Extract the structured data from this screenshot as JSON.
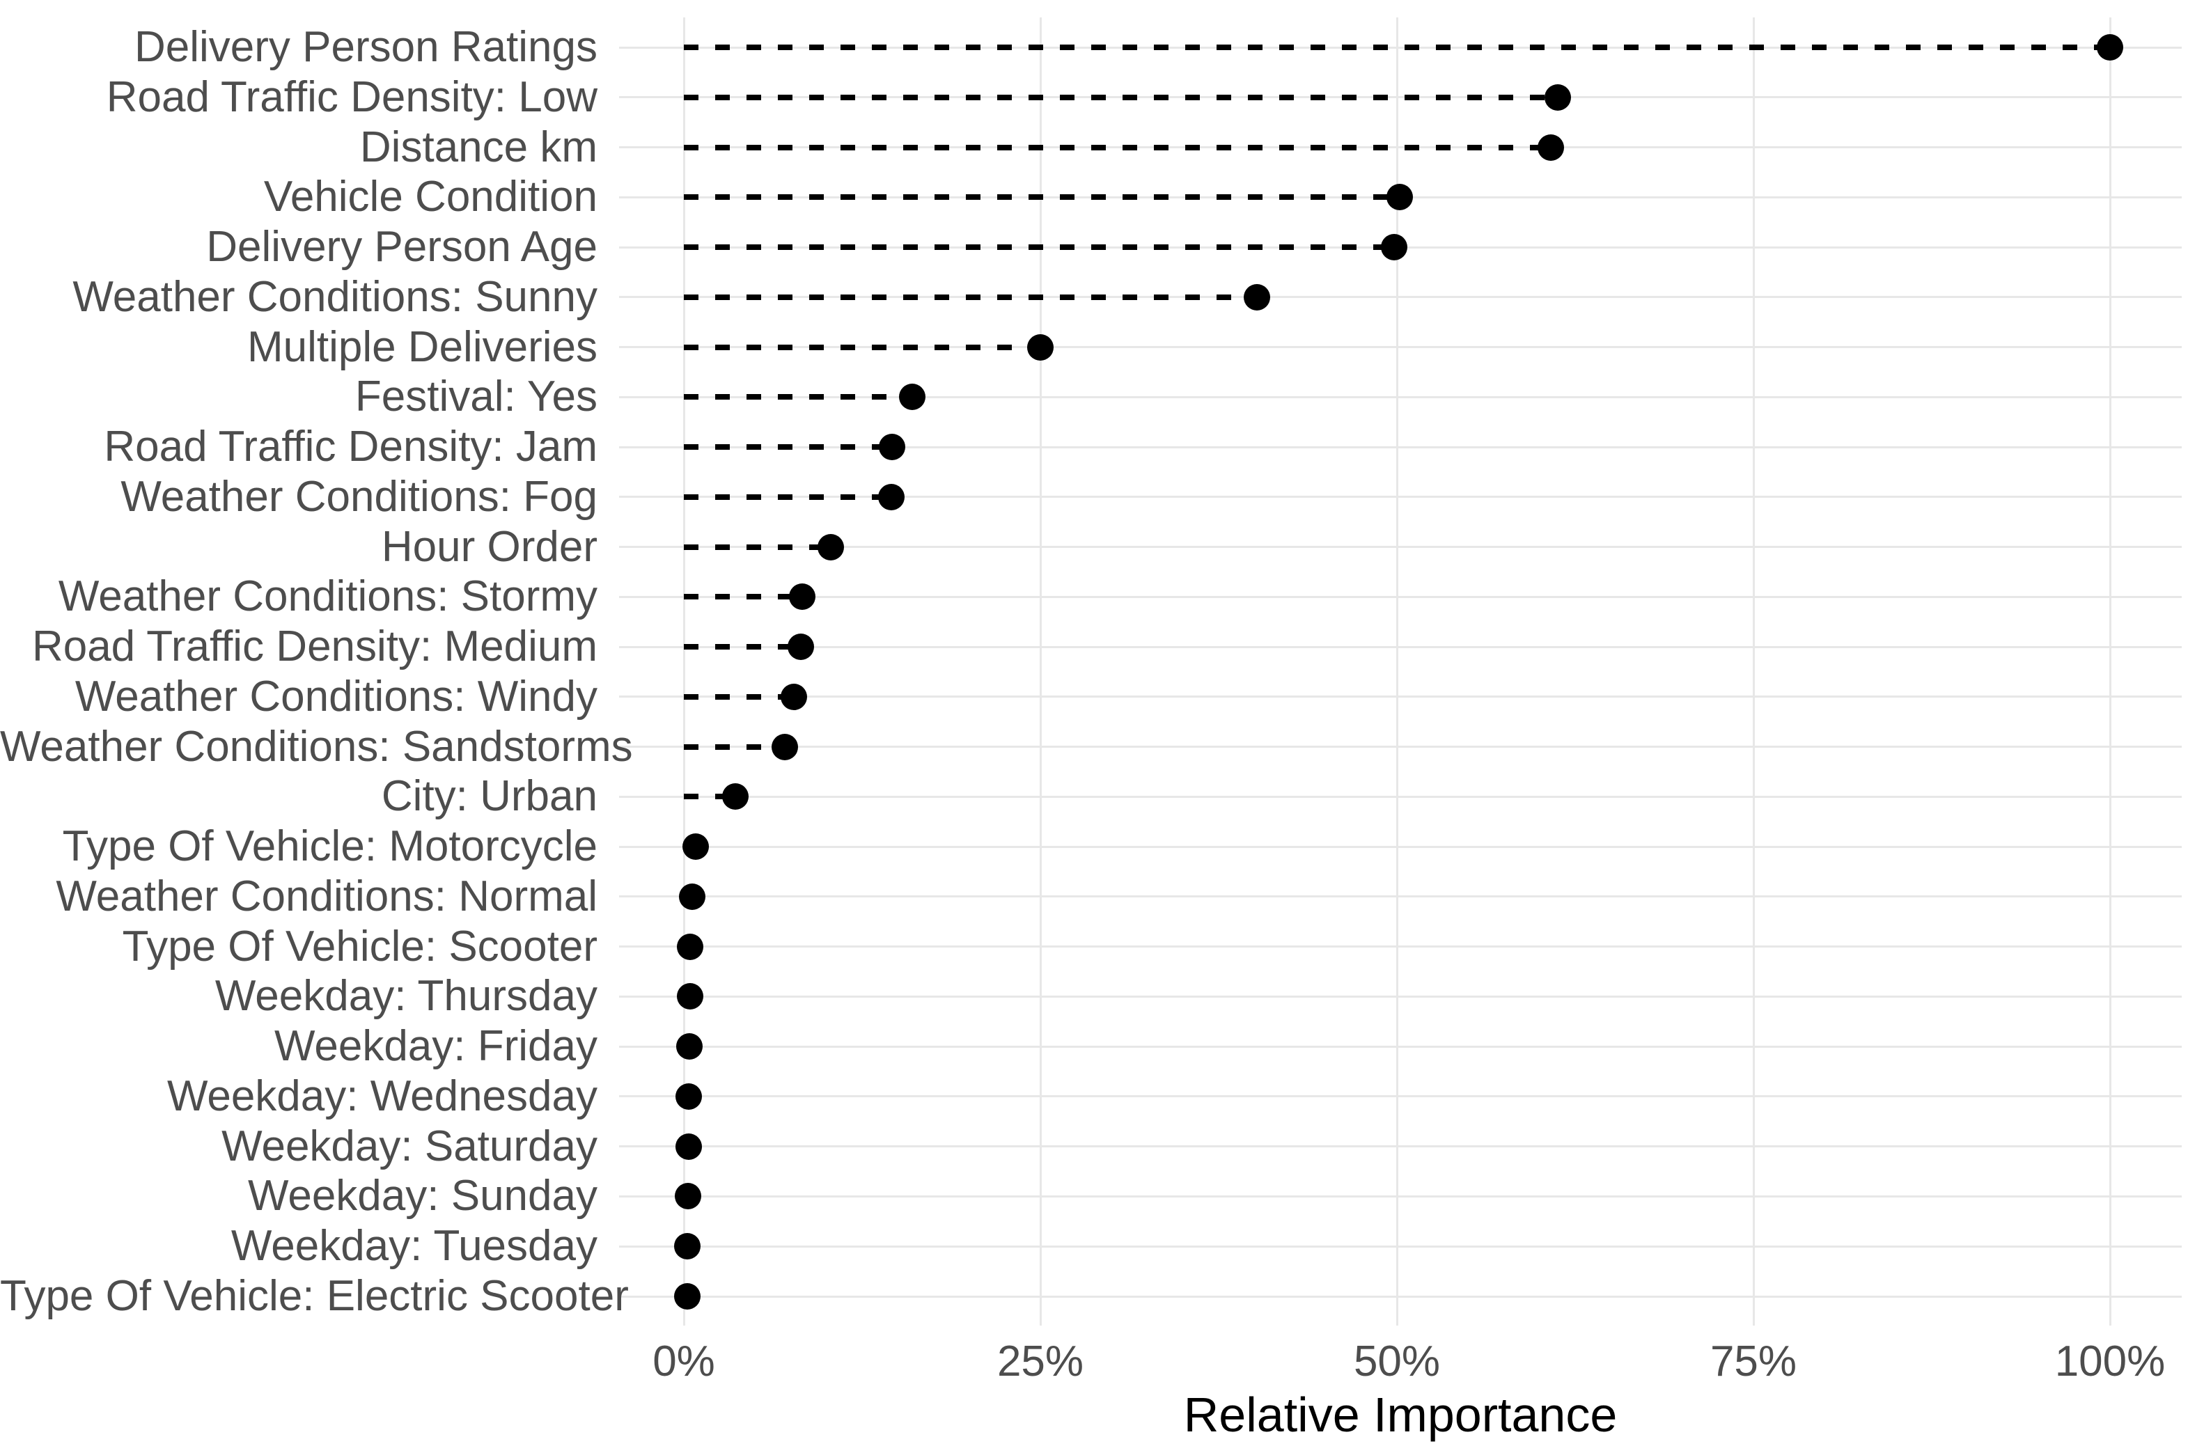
{
  "chart_data": {
    "type": "scatter",
    "variant": "horizontal-lollipop",
    "title": "",
    "xlabel": "Relative Importance",
    "ylabel": "",
    "orientation": "horizontal",
    "xlim": [
      0,
      100
    ],
    "x_tick_values": [
      0,
      25,
      50,
      75,
      100
    ],
    "x_tick_labels": [
      "0%",
      "25%",
      "50%",
      "75%",
      "100%"
    ],
    "grid": "major-vertical-and-row-lines",
    "legend": "none",
    "marker_color": "#000000",
    "stem_style": "dashed",
    "gridline_color": "#e7e7e7",
    "axis_text_color": "#4d4d4d",
    "axis_title_color": "#000000",
    "categories": [
      "Delivery Person Ratings",
      "Road Traffic Density: Low",
      "Distance km",
      "Vehicle Condition",
      "Delivery Person Age",
      "Weather Conditions: Sunny",
      "Multiple Deliveries",
      "Festival: Yes",
      "Road Traffic Density: Jam",
      "Weather Conditions: Fog",
      "Hour Order",
      "Weather Conditions: Stormy",
      "Road Traffic Density: Medium",
      "Weather Conditions: Windy",
      "Weather Conditions: Sandstorms",
      "City: Urban",
      "Type Of Vehicle: Motorcycle",
      "Weather Conditions: Normal",
      "Type Of Vehicle: Scooter",
      "Weekday: Thursday",
      "Weekday: Friday",
      "Weekday: Wednesday",
      "Weekday: Saturday",
      "Weekday: Sunday",
      "Weekday: Tuesday",
      "Type Of Vehicle: Electric Scooter"
    ],
    "values": [
      100,
      61.3,
      60.8,
      50.2,
      49.8,
      40.2,
      25.0,
      16.0,
      14.6,
      14.55,
      10.3,
      8.3,
      8.2,
      7.7,
      7.1,
      3.6,
      0.85,
      0.6,
      0.45,
      0.44,
      0.38,
      0.34,
      0.32,
      0.28,
      0.25,
      0.22
    ],
    "value_unit": "%"
  }
}
